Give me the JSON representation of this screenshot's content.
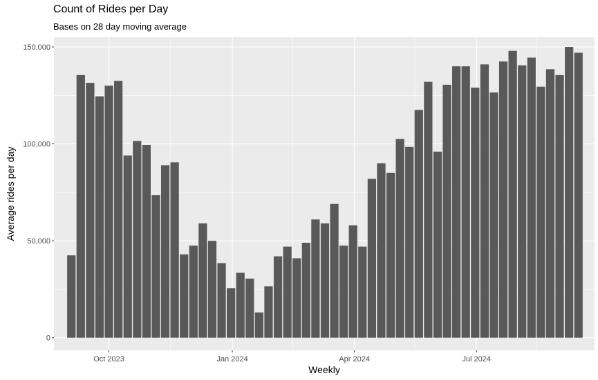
{
  "chart_data": {
    "type": "bar",
    "title": "Count of Rides per Day",
    "subtitle": "Bases on 28 day moving average",
    "xlabel": "Weekly",
    "ylabel": "Average rides per day",
    "ylim": [
      -6500,
      155000
    ],
    "y_ticks": [
      0,
      50000,
      100000,
      150000
    ],
    "y_tick_labels": [
      "0",
      "50,000",
      "100,000",
      "150,000"
    ],
    "x_range": [
      "2023-08-21",
      "2024-09-27"
    ],
    "x_ticks": [
      "2023-10-01",
      "2024-01-01",
      "2024-04-01",
      "2024-07-01"
    ],
    "x_tick_labels": [
      "Oct 2023",
      "Jan 2024",
      "Apr 2024",
      "Jul 2024"
    ],
    "bar_color": "#595959",
    "panel_color": "#ebebeb",
    "grid": true,
    "x": [
      "2023-09-03",
      "2023-09-10",
      "2023-09-17",
      "2023-09-24",
      "2023-10-01",
      "2023-10-08",
      "2023-10-15",
      "2023-10-22",
      "2023-10-29",
      "2023-11-05",
      "2023-11-12",
      "2023-11-19",
      "2023-11-26",
      "2023-12-03",
      "2023-12-10",
      "2023-12-17",
      "2023-12-24",
      "2023-12-31",
      "2024-01-07",
      "2024-01-14",
      "2024-01-21",
      "2024-01-28",
      "2024-02-04",
      "2024-02-11",
      "2024-02-18",
      "2024-02-25",
      "2024-03-03",
      "2024-03-10",
      "2024-03-17",
      "2024-03-24",
      "2024-03-31",
      "2024-04-07",
      "2024-04-14",
      "2024-04-21",
      "2024-04-28",
      "2024-05-05",
      "2024-05-12",
      "2024-05-19",
      "2024-05-26",
      "2024-06-02",
      "2024-06-09",
      "2024-06-16",
      "2024-06-23",
      "2024-06-30",
      "2024-07-07",
      "2024-07-14",
      "2024-07-21",
      "2024-07-28",
      "2024-08-04",
      "2024-08-11",
      "2024-08-18",
      "2024-08-25",
      "2024-09-01",
      "2024-09-08",
      "2024-09-15"
    ],
    "values": [
      42500,
      135500,
      131500,
      124500,
      130000,
      132500,
      94000,
      101500,
      99500,
      73500,
      89000,
      90500,
      43000,
      47500,
      59000,
      50000,
      38500,
      25500,
      33500,
      30500,
      13000,
      26500,
      42000,
      47000,
      41000,
      49000,
      61000,
      59000,
      69000,
      47500,
      58000,
      47000,
      82000,
      90000,
      85000,
      102500,
      98500,
      117500,
      132000,
      96000,
      130500,
      140000,
      140000,
      129000,
      141000,
      126500,
      142500,
      148000,
      140500,
      144500,
      129500,
      138500,
      135500,
      150000,
      147000
    ]
  }
}
